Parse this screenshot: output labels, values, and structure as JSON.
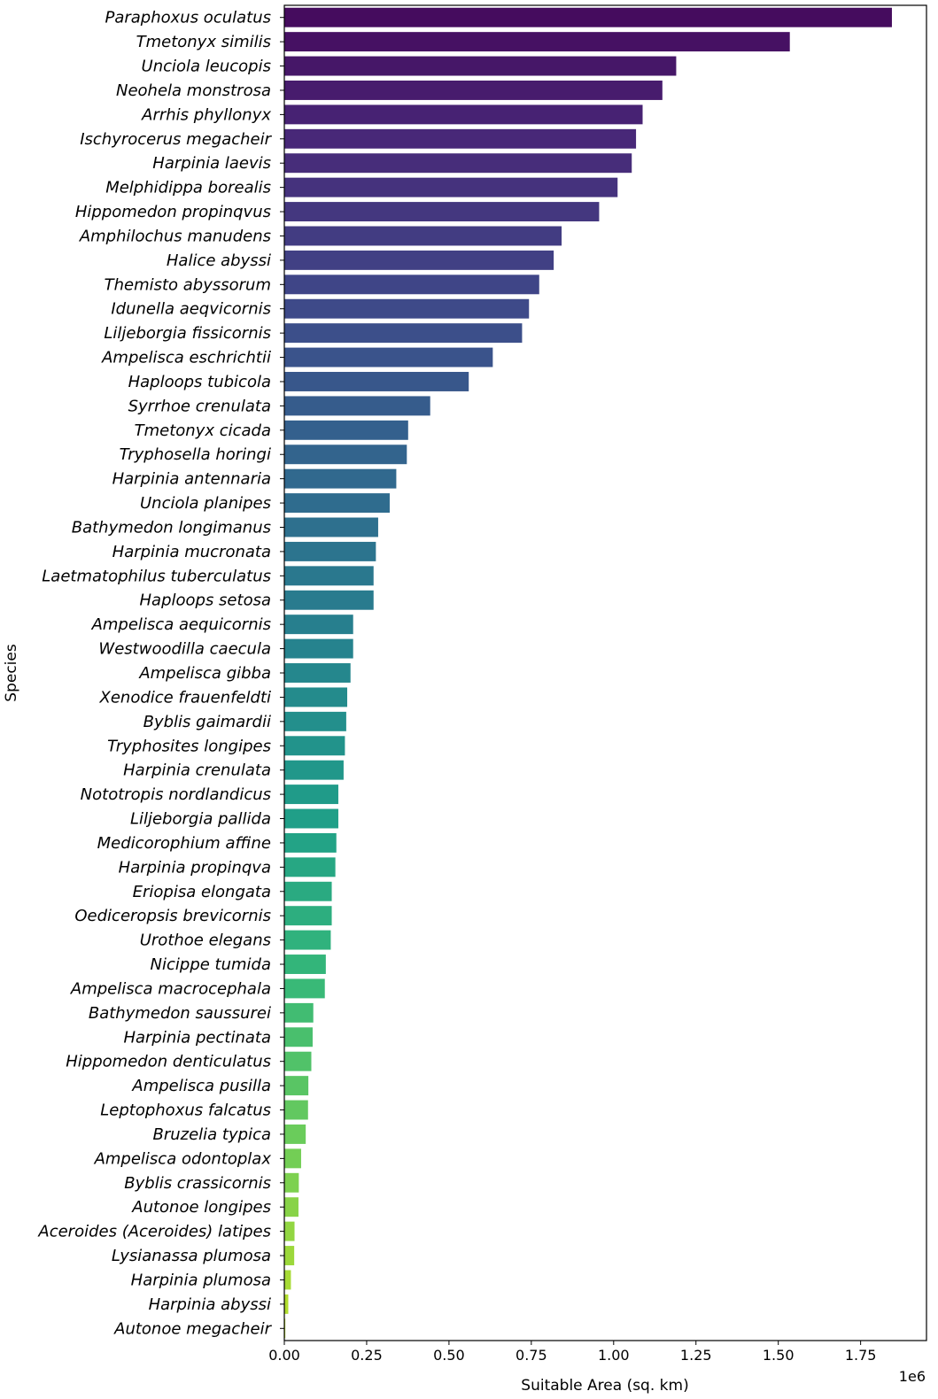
{
  "chart_data": {
    "type": "bar",
    "orientation": "horizontal",
    "title": "",
    "xlabel": "Suitable Area (sq. km)",
    "ylabel": "Species",
    "x_scale_label": "1e6",
    "xlim": [
      0,
      1.95
    ],
    "x_ticks": [
      "0.00",
      "0.25",
      "0.50",
      "0.75",
      "1.00",
      "1.25",
      "1.50",
      "1.75"
    ],
    "colormap": "viridis",
    "categories": [
      "Paraphoxus oculatus",
      "Tmetonyx similis",
      "Unciola leucopis",
      "Neohela monstrosa",
      "Arrhis phyllonyx",
      "Ischyrocerus megacheir",
      "Harpinia laevis",
      "Melphidippa borealis",
      "Hippomedon propinqvus",
      "Amphilochus manudens",
      "Halice abyssi",
      "Themisto abyssorum",
      "Idunella aeqvicornis",
      "Liljeborgia fissicornis",
      "Ampelisca eschrichtii",
      "Haploops tubicola",
      "Syrrhoe crenulata",
      "Tmetonyx cicada",
      "Tryphosella horingi",
      "Harpinia antennaria",
      "Unciola planipes",
      "Bathymedon longimanus",
      "Harpinia mucronata",
      "Laetmatophilus tuberculatus",
      "Haploops setosa",
      "Ampelisca aequicornis",
      "Westwoodilla caecula",
      "Ampelisca gibba",
      "Xenodice frauenfeldti",
      "Byblis gaimardii",
      "Tryphosites longipes",
      "Harpinia crenulata",
      "Nototropis nordlandicus",
      "Liljeborgia pallida",
      "Medicorophium affine",
      "Harpinia propinqva",
      "Eriopisa elongata",
      "Oediceropsis brevicornis",
      "Urothoe elegans",
      "Nicippe tumida",
      "Ampelisca macrocephala",
      "Bathymedon saussurei",
      "Harpinia pectinata",
      "Hippomedon denticulatus",
      "Ampelisca pusilla",
      "Leptophoxus falcatus",
      "Bruzelia typica",
      "Ampelisca odontoplax",
      "Byblis crassicornis",
      "Autonoe longipes",
      "Aceroides (Aceroides) latipes",
      "Lysianassa plumosa",
      "Harpinia plumosa",
      "Harpinia abyssi",
      "Autonoe megacheir"
    ],
    "values": [
      1.845,
      1.535,
      1.19,
      1.148,
      1.088,
      1.068,
      1.055,
      1.012,
      0.956,
      0.842,
      0.818,
      0.774,
      0.743,
      0.722,
      0.633,
      0.56,
      0.443,
      0.376,
      0.372,
      0.34,
      0.32,
      0.285,
      0.278,
      0.271,
      0.271,
      0.209,
      0.209,
      0.201,
      0.191,
      0.188,
      0.184,
      0.18,
      0.164,
      0.164,
      0.158,
      0.155,
      0.144,
      0.144,
      0.141,
      0.126,
      0.123,
      0.088,
      0.086,
      0.082,
      0.073,
      0.072,
      0.065,
      0.051,
      0.044,
      0.043,
      0.031,
      0.03,
      0.02,
      0.012,
      0.003
    ]
  }
}
